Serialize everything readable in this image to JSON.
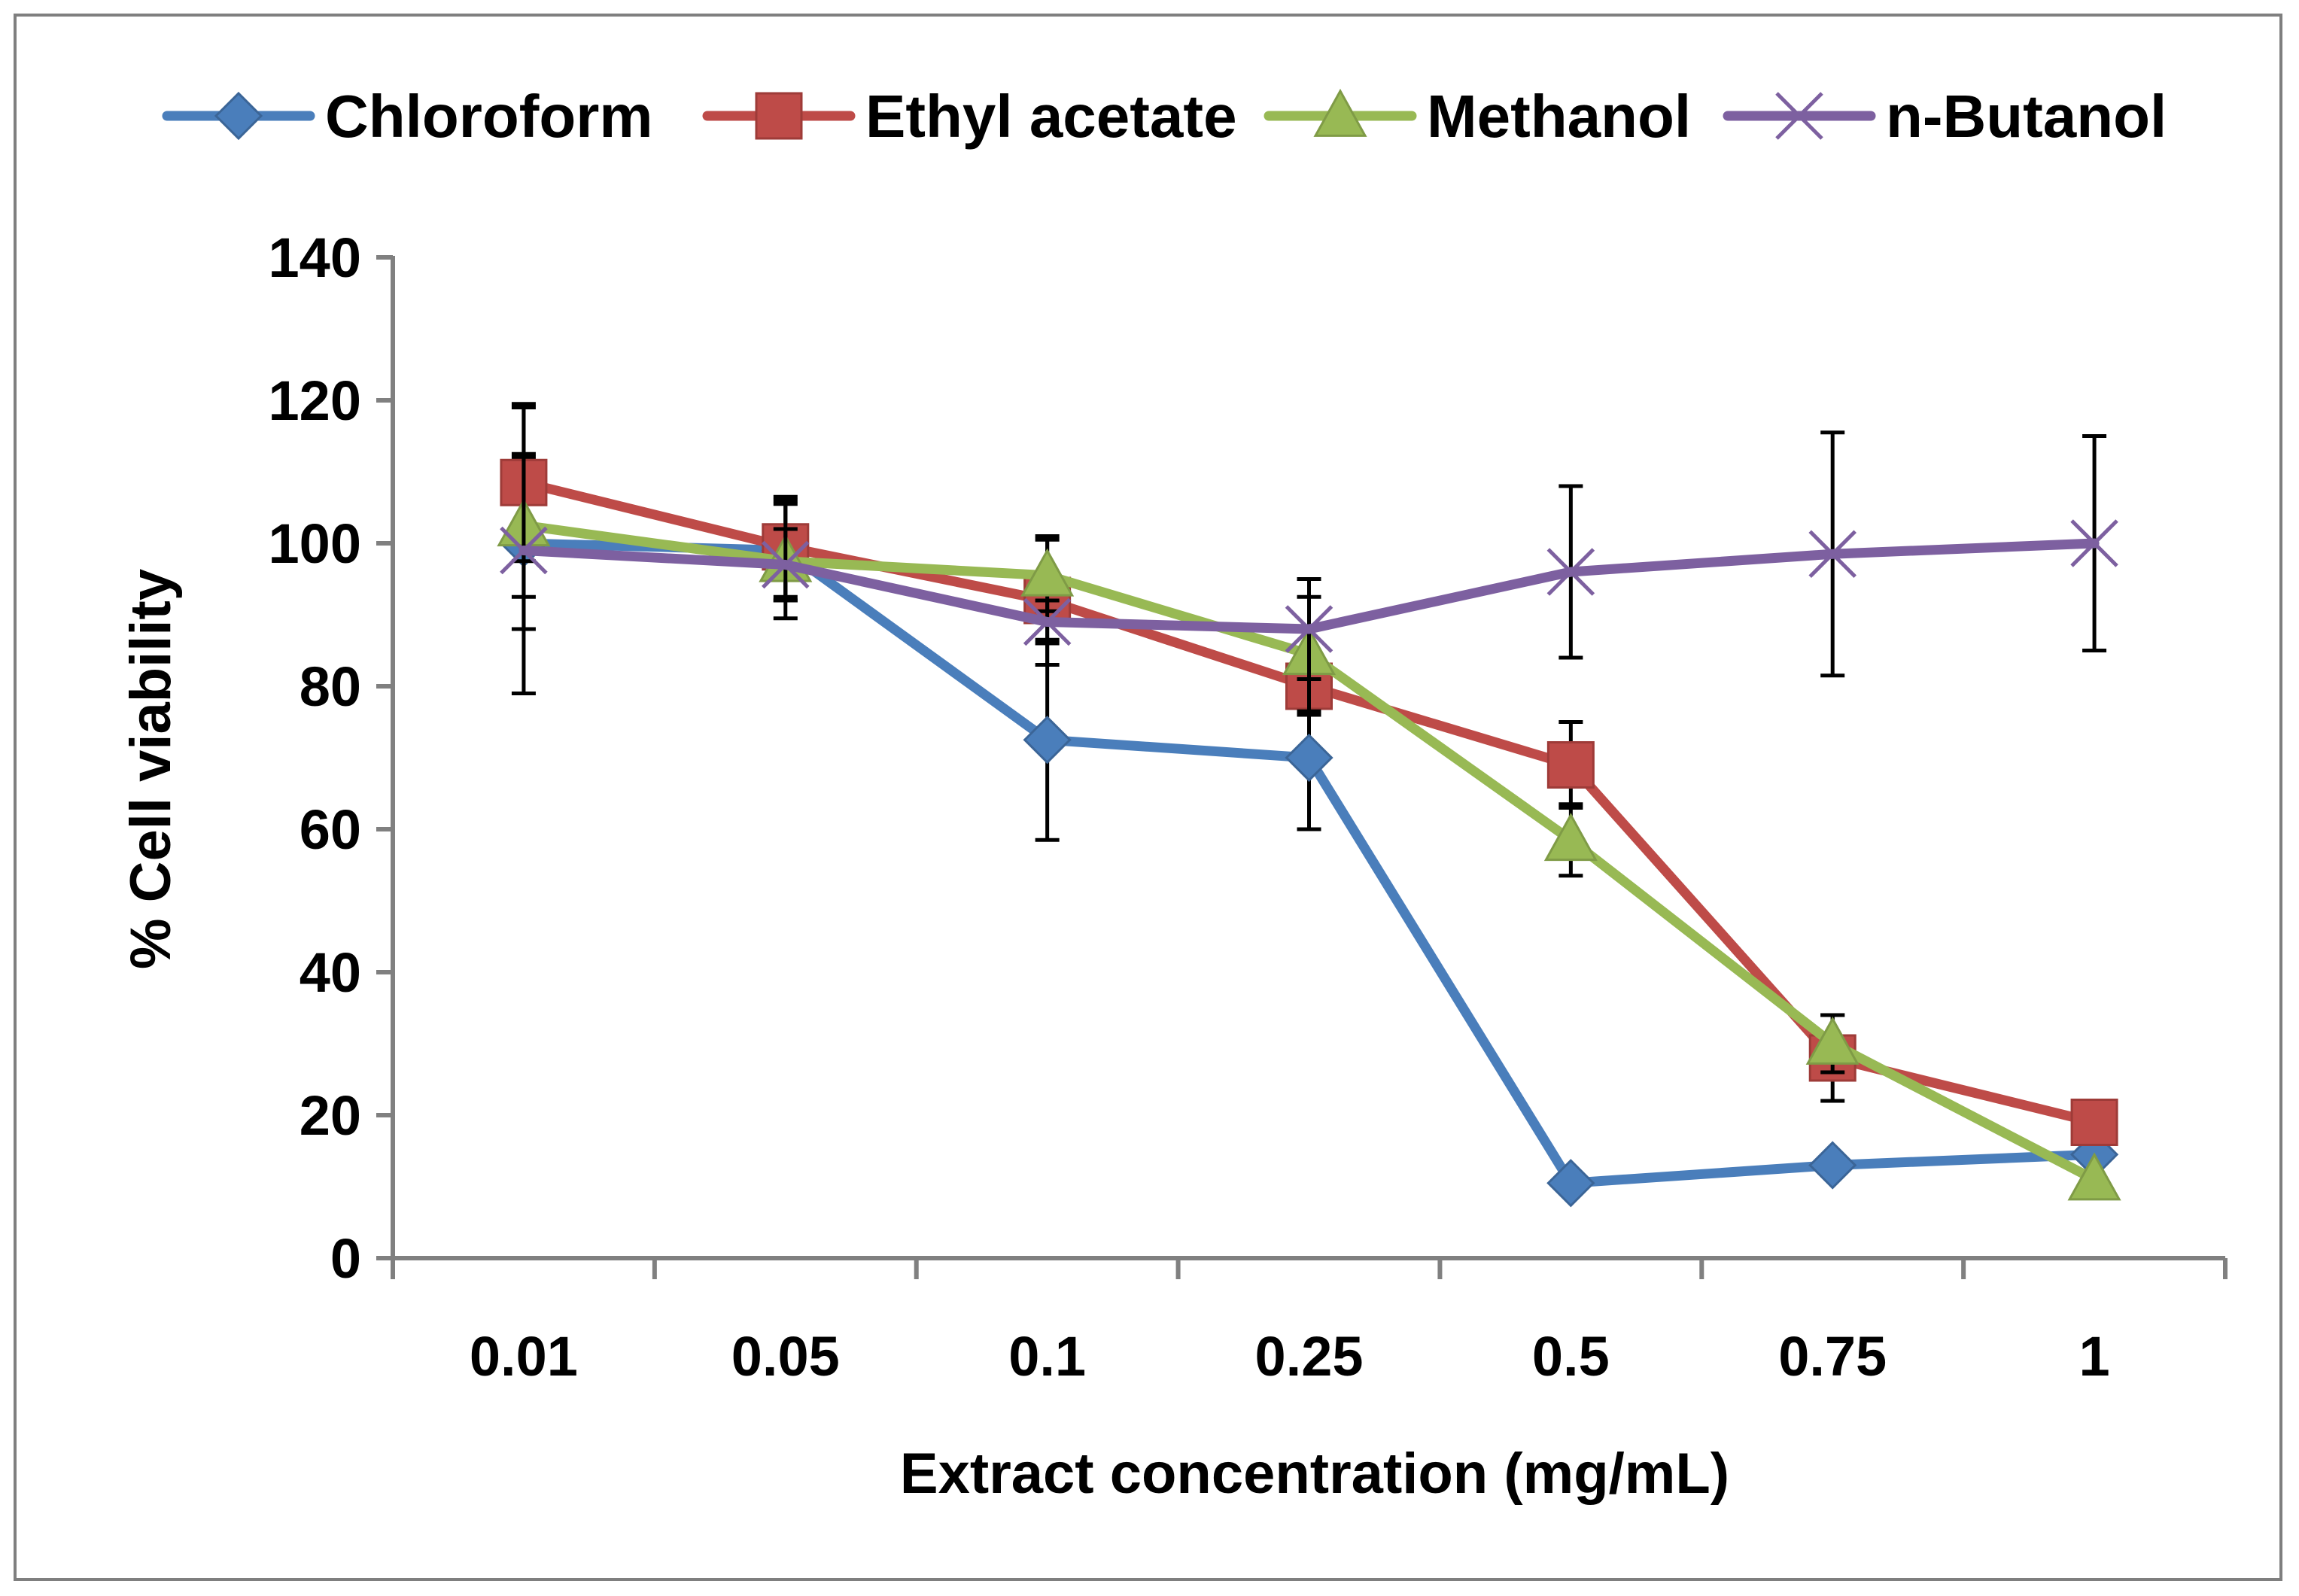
{
  "chart_data": {
    "type": "line",
    "title": "",
    "xlabel": "Extract concentration (mg/mL)",
    "ylabel": "% Cell viability",
    "categories": [
      "0.01",
      "0.05",
      "0.1",
      "0.25",
      "0.5",
      "0.75",
      "1"
    ],
    "ylim": [
      0,
      140
    ],
    "yticks": [
      "0",
      "20",
      "40",
      "60",
      "80",
      "100",
      "120",
      "140"
    ],
    "legend_position": "top",
    "grid": false,
    "series": [
      {
        "name": "Chloroform",
        "color": "#4a7ebb",
        "marker": "diamond",
        "values": [
          100,
          99,
          72.5,
          70,
          10.5,
          13,
          14.5
        ],
        "errors": [
          12,
          7,
          14,
          10,
          0,
          0,
          0
        ]
      },
      {
        "name": "Ethyl acetate",
        "color": "#be4b48",
        "marker": "square",
        "values": [
          108.5,
          99.5,
          92,
          80,
          69,
          28,
          19
        ],
        "errors": [
          11,
          7,
          9,
          4,
          6,
          6,
          0
        ]
      },
      {
        "name": "Methanol",
        "color": "#98b954",
        "marker": "triangle",
        "values": [
          102.5,
          97.5,
          95.5,
          84.5,
          58.5,
          30,
          11
        ],
        "errors": [
          10,
          8,
          5,
          8,
          5,
          4,
          0
        ]
      },
      {
        "name": "n-Butanol",
        "color": "#7d60a0",
        "marker": "x",
        "values": [
          99,
          97,
          89,
          88,
          96,
          98.5,
          100
        ],
        "errors": [
          20,
          5,
          3,
          7,
          12,
          17,
          15
        ]
      }
    ]
  }
}
